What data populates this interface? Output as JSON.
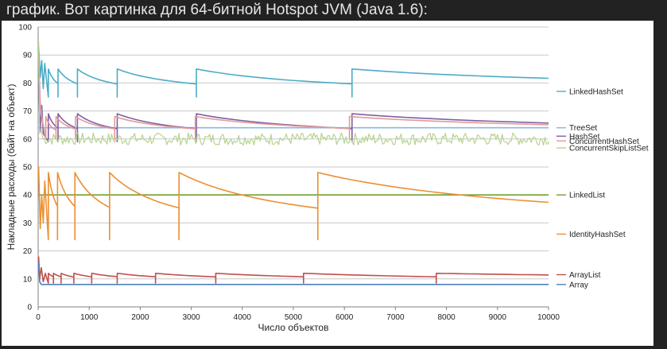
{
  "header": {
    "text": "график. Вот картинка для 64-битной Hotspot JVM (Java 1.6):"
  },
  "chart_data": {
    "type": "line",
    "title": "",
    "xlabel": "Число объектов",
    "ylabel": "Накладные расходы (байт на объект)",
    "xlim": [
      0,
      10000
    ],
    "ylim": [
      0,
      100
    ],
    "xticks": [
      0,
      1000,
      2000,
      3000,
      4000,
      5000,
      6000,
      7000,
      8000,
      9000,
      10000
    ],
    "yticks": [
      0,
      10,
      20,
      30,
      40,
      50,
      60,
      70,
      80,
      90,
      100
    ],
    "grid": "horizontal",
    "legend": "right-end-labels",
    "series": [
      {
        "name": "LinkedHashSet",
        "color": "#4bacc6",
        "shape": "sawtooth",
        "start": [
          [
            10,
            93
          ],
          [
            40,
            82
          ],
          [
            70,
            88
          ],
          [
            100,
            78
          ],
          [
            130,
            87
          ]
        ],
        "peaks": [
          200,
          390,
          770,
          1550,
          3100,
          6150
        ],
        "high": 85,
        "low": 75,
        "end": 77
      },
      {
        "name": "TreeSet",
        "color": "#8db4e2",
        "shape": "flat",
        "value": 64
      },
      {
        "name": "HashSet",
        "color": "#7f5fa6",
        "shape": "sawtooth",
        "start": [
          [
            10,
            80
          ],
          [
            40,
            63
          ],
          [
            70,
            72
          ],
          [
            100,
            62
          ]
        ],
        "peaks": [
          200,
          390,
          770,
          1550,
          3100,
          6150
        ],
        "high": 69,
        "low": 59,
        "end": 61
      },
      {
        "name": "ConcurrentHashSet",
        "color": "#e39a9a",
        "shape": "sawtooth",
        "start": [
          [
            10,
            90
          ],
          [
            40,
            73
          ],
          [
            70,
            68
          ]
        ],
        "peaks": [
          150,
          350,
          730,
          1500,
          3080,
          6100
        ],
        "high": 68,
        "low": 60,
        "end": 61
      },
      {
        "name": "ConcurrentSkipListSet",
        "color": "#b5d38f",
        "shape": "noisy",
        "start": [
          [
            10,
            95
          ],
          [
            30,
            62
          ],
          [
            60,
            63
          ]
        ],
        "value": 60,
        "noise": 2.2
      },
      {
        "name": "LinkedList",
        "color": "#70a030",
        "shape": "flat",
        "value": 40
      },
      {
        "name": "IdentityHashSet",
        "color": "#ec8f33",
        "shape": "sawtooth",
        "start": [
          [
            10,
            50
          ],
          [
            40,
            28
          ],
          [
            70,
            40
          ],
          [
            100,
            30
          ],
          [
            130,
            45
          ]
        ],
        "peaks": [
          200,
          380,
          720,
          1400,
          2760,
          5480
        ],
        "high": 48,
        "low": 24,
        "end": 26
      },
      {
        "name": "ArrayList",
        "color": "#c0504d",
        "shape": "sawtooth",
        "start": [
          [
            10,
            18
          ],
          [
            30,
            10
          ],
          [
            60,
            14
          ],
          [
            100,
            9
          ],
          [
            140,
            12
          ]
        ],
        "peaks": [
          200,
          300,
          450,
          700,
          1050,
          1550,
          2300,
          3480,
          5200,
          7800
        ],
        "high": 12,
        "low": 8.5,
        "end": 9.5
      },
      {
        "name": "Array",
        "color": "#4f81bd",
        "shape": "flat",
        "start": [
          [
            10,
            16
          ],
          [
            30,
            9
          ],
          [
            60,
            8
          ]
        ],
        "value": 8
      }
    ],
    "end_labels": [
      {
        "series": "LinkedHashSet",
        "y": 77
      },
      {
        "series": "TreeSet",
        "y": 64
      },
      {
        "series": "HashSet",
        "y": 61
      },
      {
        "series": "ConcurrentHashSet",
        "y": 59.3
      },
      {
        "series": "ConcurrentSkipListSet",
        "y": 56.8
      },
      {
        "series": "LinkedList",
        "y": 40
      },
      {
        "series": "IdentityHashSet",
        "y": 26
      },
      {
        "series": "ArrayList",
        "y": 11.5
      },
      {
        "series": "Array",
        "y": 8
      }
    ]
  }
}
